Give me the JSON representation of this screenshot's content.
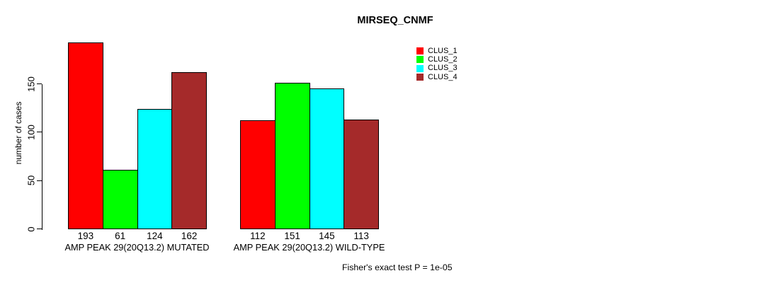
{
  "chart_data": {
    "type": "bar",
    "title": "MIRSEQ_CNMF",
    "ylabel": "number of cases",
    "xlabel": "",
    "ylim": [
      0,
      150
    ],
    "yticks": [
      0,
      50,
      100,
      150
    ],
    "grid": false,
    "legend_position": "top-right",
    "categories": [
      "AMP PEAK 29(20Q13.2) MUTATED",
      "AMP PEAK 29(20Q13.2) WILD-TYPE"
    ],
    "series": [
      {
        "name": "CLUS_1",
        "color": "#ff0000",
        "values": [
          193,
          112
        ]
      },
      {
        "name": "CLUS_2",
        "color": "#00ff00",
        "values": [
          61,
          151
        ]
      },
      {
        "name": "CLUS_3",
        "color": "#00ffff",
        "values": [
          124,
          145
        ]
      },
      {
        "name": "CLUS_4",
        "color": "#a52a2a",
        "values": [
          162,
          113
        ]
      }
    ],
    "bar_value_labels": [
      [
        193,
        61,
        124,
        162
      ],
      [
        112,
        151,
        145,
        113
      ]
    ],
    "annotation": "Fisher's exact test P = 1e-05"
  }
}
